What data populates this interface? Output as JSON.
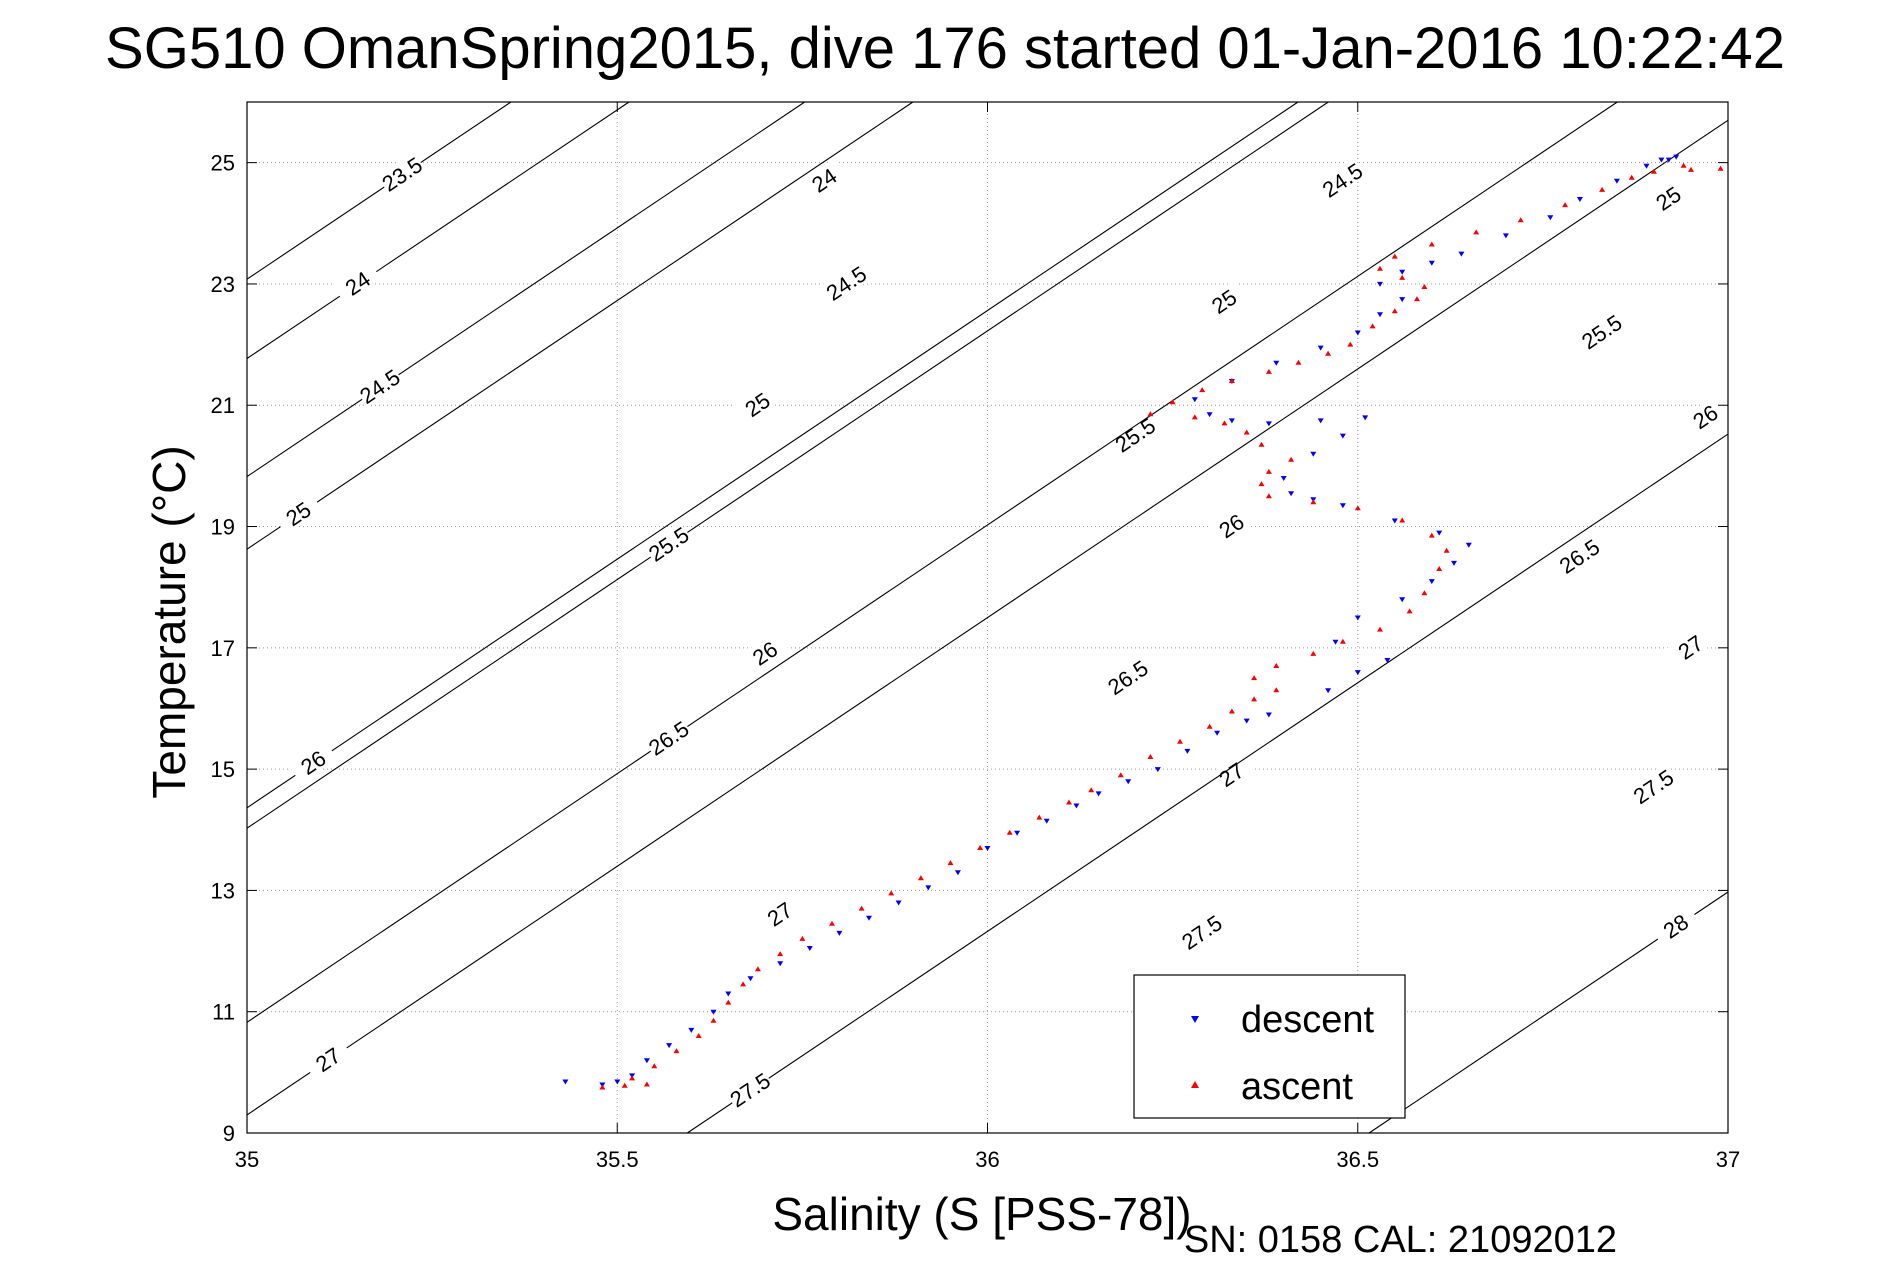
{
  "chart_data": {
    "type": "scatter",
    "title": "SG510 OmanSpring2015, dive 176 started 01-Jan-2016 10:22:42",
    "xlabel": "Salinity (S [PSS-78])",
    "ylabel": "Temperature (°C)",
    "xlim": [
      35,
      37
    ],
    "ylim": [
      9,
      26
    ],
    "x_ticks": [
      35,
      35.5,
      36,
      36.5,
      37
    ],
    "x_tick_labels": [
      "35",
      "35.5",
      "36",
      "36.5",
      "37"
    ],
    "y_ticks": [
      9,
      11,
      13,
      15,
      17,
      19,
      21,
      23,
      25
    ],
    "y_tick_labels": [
      "9",
      "11",
      "13",
      "15",
      "17",
      "19",
      "21",
      "23",
      "25"
    ],
    "grid": true,
    "legend_position": "bottom-right",
    "footer": "SN: 0158  CAL: 21092012",
    "colors": {
      "descent": "#0000ff",
      "ascent": "#ff0000",
      "contour": "#000000",
      "grid": "#999999"
    },
    "contours": [
      {
        "level": "23.5",
        "labels": [
          [
            35.21,
            24.8
          ]
        ]
      },
      {
        "level": "24",
        "labels": [
          [
            35.15,
            23.0
          ],
          [
            35.78,
            24.7
          ]
        ]
      },
      {
        "level": "24.5",
        "labels": [
          [
            35.18,
            21.3
          ],
          [
            35.81,
            23.0
          ],
          [
            36.48,
            24.7
          ]
        ]
      },
      {
        "level": "25",
        "labels": [
          [
            35.07,
            19.2
          ],
          [
            35.69,
            21.0
          ],
          [
            36.32,
            22.7
          ],
          [
            36.92,
            24.4
          ]
        ]
      },
      {
        "level": "25.5",
        "labels": [
          [
            35.57,
            18.7
          ],
          [
            36.2,
            20.5
          ],
          [
            36.83,
            22.2
          ]
        ]
      },
      {
        "level": "26",
        "labels": [
          [
            35.09,
            15.1
          ],
          [
            35.7,
            16.9
          ],
          [
            36.33,
            19.0
          ],
          [
            36.97,
            20.8
          ]
        ]
      },
      {
        "level": "26.5",
        "labels": [
          [
            35.57,
            15.5
          ],
          [
            36.19,
            16.5
          ],
          [
            36.8,
            18.5
          ]
        ]
      },
      {
        "level": "27",
        "labels": [
          [
            35.11,
            10.2
          ],
          [
            35.72,
            12.6
          ],
          [
            36.33,
            14.9
          ],
          [
            36.95,
            17.0
          ]
        ]
      },
      {
        "level": "27.5",
        "labels": [
          [
            35.68,
            9.7
          ],
          [
            36.29,
            12.3
          ],
          [
            36.9,
            14.7
          ]
        ]
      },
      {
        "level": "28",
        "labels": [
          [
            36.93,
            12.4
          ]
        ]
      }
    ],
    "series": [
      {
        "name": "descent",
        "marker": "triangle-down",
        "points": [
          [
            35.43,
            9.85
          ],
          [
            35.48,
            9.8
          ],
          [
            35.5,
            9.85
          ],
          [
            35.52,
            9.95
          ],
          [
            35.54,
            10.2
          ],
          [
            35.57,
            10.45
          ],
          [
            35.6,
            10.7
          ],
          [
            35.63,
            11.0
          ],
          [
            35.65,
            11.3
          ],
          [
            35.68,
            11.55
          ],
          [
            35.72,
            11.8
          ],
          [
            35.76,
            12.05
          ],
          [
            35.8,
            12.3
          ],
          [
            35.84,
            12.55
          ],
          [
            35.88,
            12.8
          ],
          [
            35.92,
            13.05
          ],
          [
            35.96,
            13.3
          ],
          [
            36.0,
            13.7
          ],
          [
            36.04,
            13.95
          ],
          [
            36.08,
            14.15
          ],
          [
            36.12,
            14.4
          ],
          [
            36.15,
            14.6
          ],
          [
            36.19,
            14.8
          ],
          [
            36.23,
            15.0
          ],
          [
            36.27,
            15.3
          ],
          [
            36.31,
            15.6
          ],
          [
            36.35,
            15.8
          ],
          [
            36.38,
            15.9
          ],
          [
            36.46,
            16.3
          ],
          [
            36.5,
            16.6
          ],
          [
            36.54,
            16.8
          ],
          [
            36.47,
            17.1
          ],
          [
            36.5,
            17.5
          ],
          [
            36.56,
            17.8
          ],
          [
            36.6,
            18.1
          ],
          [
            36.63,
            18.4
          ],
          [
            36.65,
            18.7
          ],
          [
            36.61,
            18.9
          ],
          [
            36.55,
            19.1
          ],
          [
            36.48,
            19.35
          ],
          [
            36.44,
            19.45
          ],
          [
            36.41,
            19.55
          ],
          [
            36.4,
            19.8
          ],
          [
            36.44,
            20.2
          ],
          [
            36.48,
            20.5
          ],
          [
            36.51,
            20.8
          ],
          [
            36.45,
            20.75
          ],
          [
            36.38,
            20.7
          ],
          [
            36.33,
            20.75
          ],
          [
            36.3,
            20.85
          ],
          [
            36.28,
            21.1
          ],
          [
            36.33,
            21.4
          ],
          [
            36.39,
            21.7
          ],
          [
            36.45,
            21.95
          ],
          [
            36.5,
            22.2
          ],
          [
            36.53,
            22.5
          ],
          [
            36.56,
            22.75
          ],
          [
            36.53,
            23.0
          ],
          [
            36.56,
            23.2
          ],
          [
            36.6,
            23.35
          ],
          [
            36.64,
            23.5
          ],
          [
            36.7,
            23.8
          ],
          [
            36.76,
            24.1
          ],
          [
            36.8,
            24.4
          ],
          [
            36.85,
            24.7
          ],
          [
            36.89,
            24.95
          ],
          [
            36.91,
            25.05
          ],
          [
            36.93,
            25.1
          ],
          [
            36.92,
            25.05
          ]
        ]
      },
      {
        "name": "ascent",
        "marker": "triangle-up",
        "points": [
          [
            35.48,
            9.75
          ],
          [
            35.51,
            9.78
          ],
          [
            35.54,
            9.8
          ],
          [
            35.52,
            9.9
          ],
          [
            35.55,
            10.1
          ],
          [
            35.58,
            10.35
          ],
          [
            35.61,
            10.6
          ],
          [
            35.63,
            10.85
          ],
          [
            35.65,
            11.15
          ],
          [
            35.67,
            11.45
          ],
          [
            35.69,
            11.7
          ],
          [
            35.72,
            11.95
          ],
          [
            35.75,
            12.2
          ],
          [
            35.79,
            12.45
          ],
          [
            35.83,
            12.7
          ],
          [
            35.87,
            12.95
          ],
          [
            35.91,
            13.2
          ],
          [
            35.95,
            13.45
          ],
          [
            35.99,
            13.7
          ],
          [
            36.03,
            13.95
          ],
          [
            36.07,
            14.2
          ],
          [
            36.11,
            14.45
          ],
          [
            36.14,
            14.65
          ],
          [
            36.18,
            14.9
          ],
          [
            36.22,
            15.2
          ],
          [
            36.26,
            15.45
          ],
          [
            36.3,
            15.7
          ],
          [
            36.33,
            15.95
          ],
          [
            36.36,
            16.15
          ],
          [
            36.39,
            16.3
          ],
          [
            36.36,
            16.5
          ],
          [
            36.39,
            16.7
          ],
          [
            36.44,
            16.9
          ],
          [
            36.48,
            17.1
          ],
          [
            36.53,
            17.3
          ],
          [
            36.57,
            17.6
          ],
          [
            36.59,
            17.9
          ],
          [
            36.61,
            18.3
          ],
          [
            36.62,
            18.6
          ],
          [
            36.6,
            18.85
          ],
          [
            36.56,
            19.1
          ],
          [
            36.5,
            19.3
          ],
          [
            36.44,
            19.4
          ],
          [
            36.38,
            19.5
          ],
          [
            36.37,
            19.7
          ],
          [
            36.38,
            19.9
          ],
          [
            36.41,
            20.1
          ],
          [
            36.37,
            20.35
          ],
          [
            36.35,
            20.55
          ],
          [
            36.32,
            20.7
          ],
          [
            36.28,
            20.8
          ],
          [
            36.22,
            20.85
          ],
          [
            36.25,
            21.05
          ],
          [
            36.29,
            21.25
          ],
          [
            36.33,
            21.4
          ],
          [
            36.38,
            21.55
          ],
          [
            36.42,
            21.7
          ],
          [
            36.46,
            21.85
          ],
          [
            36.49,
            22.0
          ],
          [
            36.52,
            22.3
          ],
          [
            36.55,
            22.55
          ],
          [
            36.58,
            22.75
          ],
          [
            36.59,
            22.95
          ],
          [
            36.56,
            23.1
          ],
          [
            36.53,
            23.25
          ],
          [
            36.55,
            23.45
          ],
          [
            36.6,
            23.65
          ],
          [
            36.66,
            23.85
          ],
          [
            36.72,
            24.05
          ],
          [
            36.78,
            24.3
          ],
          [
            36.83,
            24.55
          ],
          [
            36.87,
            24.75
          ],
          [
            36.9,
            24.85
          ],
          [
            36.94,
            24.95
          ],
          [
            36.95,
            24.88
          ],
          [
            36.99,
            24.9
          ]
        ]
      }
    ]
  }
}
